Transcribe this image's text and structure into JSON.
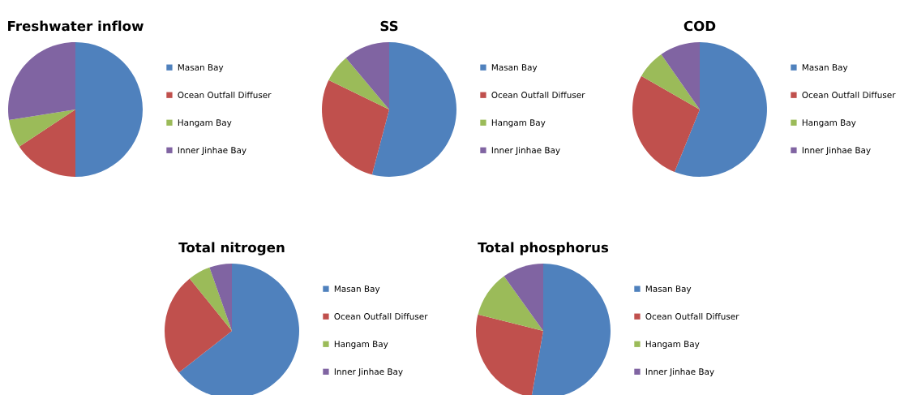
{
  "chart_data": [
    {
      "type": "pie",
      "title": "Freshwater inflow",
      "categories": [
        "Masan Bay",
        "Ocean Outfall Diffuser",
        "Hangam Bay",
        "Inner Jinhae Bay"
      ],
      "values": [
        50,
        15.7,
        6.8,
        27.5
      ],
      "colors": [
        "#4f81bd",
        "#c0504d",
        "#9bbb59",
        "#8064a2"
      ],
      "legend": "right"
    },
    {
      "type": "pie",
      "title": "SS",
      "categories": [
        "Masan Bay",
        "Ocean Outfall Diffuser",
        "Hangam Bay",
        "Inner Jinhae Bay"
      ],
      "values": [
        54.1,
        28.1,
        6.7,
        11.1
      ],
      "colors": [
        "#4f81bd",
        "#c0504d",
        "#9bbb59",
        "#8064a2"
      ],
      "legend": "right"
    },
    {
      "type": "pie",
      "title": "COD",
      "categories": [
        "Masan Bay",
        "Ocean Outfall Diffuser",
        "Hangam Bay",
        "Inner Jinhae Bay"
      ],
      "values": [
        56.1,
        27.2,
        7,
        9.7
      ],
      "colors": [
        "#4f81bd",
        "#c0504d",
        "#9bbb59",
        "#8064a2"
      ],
      "legend": "right"
    },
    {
      "type": "pie",
      "title": "Total nitrogen",
      "categories": [
        "Masan Bay",
        "Ocean Outfall Diffuser",
        "Hangam Bay",
        "Inner Jinhae Bay"
      ],
      "values": [
        64.4,
        24.8,
        5.4,
        5.4
      ],
      "colors": [
        "#4f81bd",
        "#c0504d",
        "#9bbb59",
        "#8064a2"
      ],
      "legend": "right"
    },
    {
      "type": "pie",
      "title": "Total phosphorus",
      "categories": [
        "Masan Bay",
        "Ocean Outfall Diffuser",
        "Hangam Bay",
        "Inner Jinhae Bay"
      ],
      "values": [
        52.8,
        26.1,
        11.2,
        9.9
      ],
      "colors": [
        "#4f81bd",
        "#c0504d",
        "#9bbb59",
        "#8064a2"
      ],
      "legend": "right"
    }
  ]
}
